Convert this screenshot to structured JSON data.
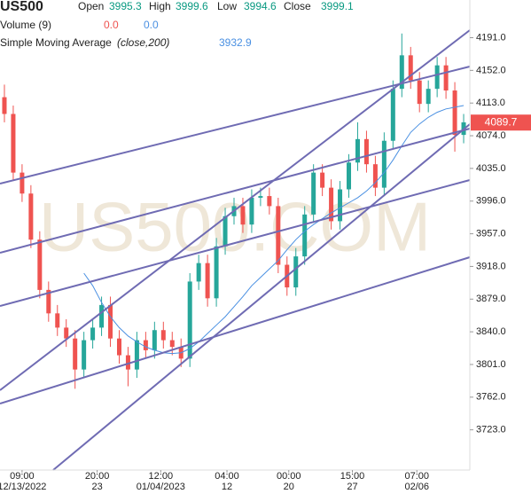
{
  "header": {
    "symbol": "US500",
    "open_label": "Open",
    "open": "3995.3",
    "high_label": "High",
    "high": "3999.6",
    "low_label": "Low",
    "low": "3994.6",
    "close_label": "Close",
    "close": "3999.1",
    "volume_label": "Volume (9)",
    "volume_1": "0.0",
    "volume_2": "0.0",
    "sma_label": "Simple Moving Average",
    "sma_params": "(close,200)",
    "sma_value": "3932.9"
  },
  "chart_data": {
    "type": "candlestick",
    "watermark": "US500.COM",
    "up_color": "#26a69a",
    "down_color": "#ef5350",
    "sma_color": "#4a90e2",
    "xlim": [
      -0.5,
      52.7
    ],
    "ylim": [
      3675,
      4236
    ],
    "yticks": [
      {
        "value": 3723,
        "label": "3723.0"
      },
      {
        "value": 3762,
        "label": "3762.0"
      },
      {
        "value": 3801,
        "label": "3801.0"
      },
      {
        "value": 3840,
        "label": "3840.0"
      },
      {
        "value": 3879,
        "label": "3879.0"
      },
      {
        "value": 3918,
        "label": "3918.0"
      },
      {
        "value": 3957,
        "label": "3957.0"
      },
      {
        "value": 3996,
        "label": "3996.0"
      },
      {
        "value": 4035,
        "label": "4035.0"
      },
      {
        "value": 4074,
        "label": "4074.0"
      },
      {
        "value": 4113,
        "label": "4113.0"
      },
      {
        "value": 4152,
        "label": "4152.0"
      },
      {
        "value": 4191,
        "label": "4191.0"
      }
    ],
    "xticks": [
      {
        "value": 2,
        "label": "09:00"
      },
      {
        "value": 10.5,
        "label": "20:00"
      },
      {
        "value": 17.7,
        "label": "12:00"
      },
      {
        "value": 25.2,
        "label": "04:00"
      },
      {
        "value": 32.2,
        "label": "00:00"
      },
      {
        "value": 39.4,
        "label": "15:00"
      },
      {
        "value": 46.7,
        "label": "07:00"
      }
    ],
    "xtick_dates": [
      "12/13/2022",
      "23",
      "01/04/2023",
      "12",
      "20",
      "27",
      "02/06"
    ],
    "last_price": {
      "value": 4089.7,
      "label": "4089.7"
    },
    "open": [
      4120,
      4100,
      4030,
      4005,
      3950,
      3890,
      3862,
      3845,
      3832,
      3795,
      3830,
      3845,
      3872,
      3832,
      3812,
      3795,
      3830,
      3818,
      3842,
      3830,
      3822,
      3808,
      3900,
      3922,
      3880,
      3942,
      3978,
      3990,
      3968,
      4000,
      4002,
      3990,
      3920,
      3893,
      3930,
      3980,
      4030,
      4012,
      3972,
      4010,
      4042,
      4070,
      4040,
      4012,
      4068,
      4130,
      4170,
      4140,
      4112,
      4130,
      4158,
      4128,
      4075
    ],
    "high": [
      4135,
      4110,
      4040,
      4015,
      3960,
      3900,
      3872,
      3855,
      3842,
      3840,
      3855,
      3882,
      3882,
      3842,
      3822,
      3840,
      3840,
      3852,
      3852,
      3840,
      3832,
      3910,
      3932,
      3932,
      3952,
      3988,
      4000,
      4000,
      4010,
      4012,
      4012,
      4000,
      3930,
      3940,
      3990,
      4040,
      4040,
      4022,
      4020,
      4052,
      4090,
      4080,
      4050,
      4078,
      4140,
      4196,
      4180,
      4150,
      4140,
      4168,
      4168,
      4138,
      4100
    ],
    "low": [
      4090,
      4020,
      3995,
      3940,
      3880,
      3852,
      3835,
      3822,
      3772,
      3785,
      3820,
      3835,
      3822,
      3802,
      3775,
      3785,
      3808,
      3808,
      3820,
      3812,
      3798,
      3798,
      3890,
      3870,
      3870,
      3932,
      3968,
      3958,
      3958,
      3990,
      3980,
      3910,
      3883,
      3883,
      3920,
      3970,
      4002,
      3962,
      3962,
      4000,
      4032,
      4030,
      4002,
      4002,
      4058,
      4120,
      4130,
      4102,
      4102,
      4120,
      4118,
      4055,
      4065
    ],
    "close": [
      4100,
      4030,
      4005,
      3950,
      3890,
      3862,
      3845,
      3832,
      3795,
      3830,
      3845,
      3872,
      3832,
      3812,
      3795,
      3830,
      3818,
      3842,
      3830,
      3822,
      3808,
      3900,
      3922,
      3880,
      3942,
      3978,
      3990,
      3968,
      4000,
      4002,
      3990,
      3920,
      3893,
      3930,
      3980,
      4030,
      4012,
      3972,
      4010,
      4042,
      4070,
      4040,
      4012,
      4068,
      4130,
      4170,
      4140,
      4112,
      4130,
      4158,
      4128,
      4075,
      4090
    ],
    "sma": [
      null,
      null,
      null,
      null,
      null,
      null,
      null,
      null,
      null,
      3910,
      3895,
      3875,
      3858,
      3845,
      3835,
      3828,
      3822,
      3818,
      3815,
      3814,
      3815,
      3820,
      3828,
      3838,
      3848,
      3858,
      3870,
      3882,
      3895,
      3905,
      3915,
      3925,
      3938,
      3950,
      3960,
      3968,
      3975,
      3982,
      3988,
      3994,
      4000,
      4008,
      4018,
      4030,
      4045,
      4062,
      4078,
      4088,
      4096,
      4102,
      4106,
      4108,
      4110
    ]
  }
}
